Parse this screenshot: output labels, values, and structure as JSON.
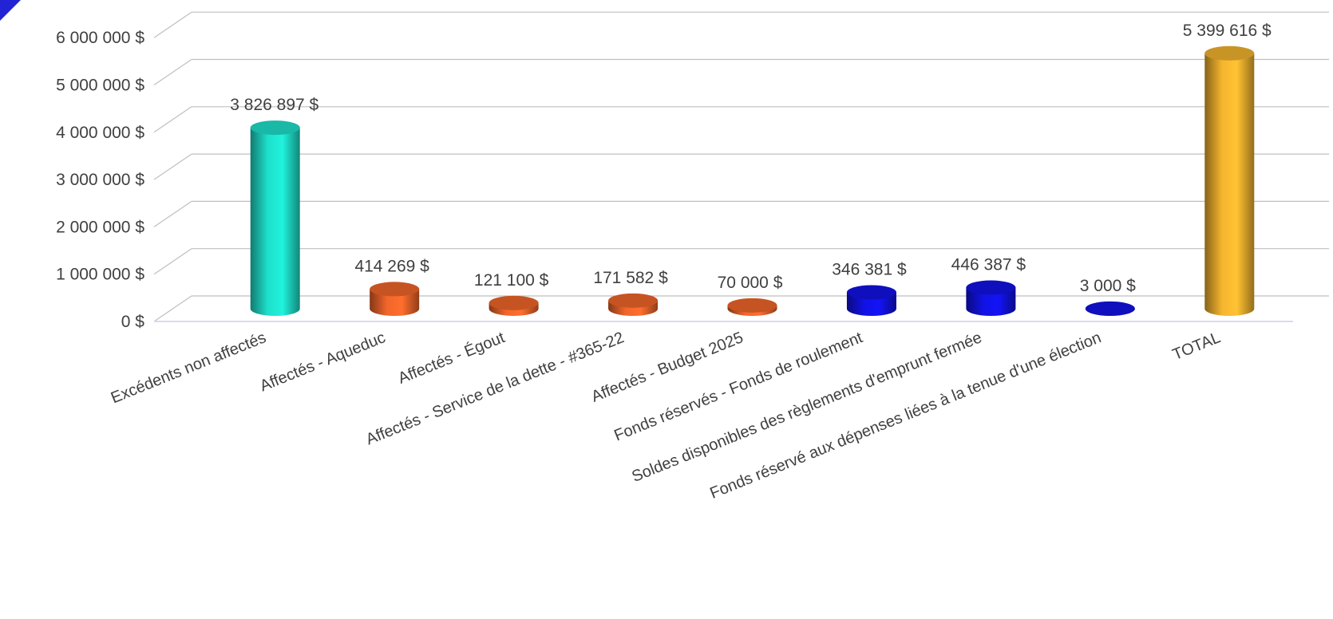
{
  "chart_data": {
    "type": "bar",
    "style": "3d-cylinder",
    "categories": [
      "Excédents non affectés",
      "Affectés - Aqueduc",
      "Affectés - Égout",
      "Affectés - Service de la dette - #365-22",
      "Affectés - Budget 2025",
      "Fonds réservés - Fonds de roulement",
      "Soldes disponibles des règlements d'emprunt fermée",
      "Fonds réservé aux dépenses liées à la tenue d'une élection",
      "TOTAL"
    ],
    "values": [
      3826897,
      414269,
      121100,
      171582,
      70000,
      346381,
      446387,
      3000,
      5399616
    ],
    "data_labels": [
      "3 826 897  $",
      "414 269  $",
      "121 100  $",
      "171 582  $",
      "70 000  $",
      "346 381  $",
      "446 387  $",
      "3 000  $",
      "5 399 616  $"
    ],
    "colors": [
      "#1ee0cc",
      "#f2662a",
      "#f2662a",
      "#f2662a",
      "#f2662a",
      "#1212e6",
      "#1212e6",
      "#1212e6",
      "#f5b52e"
    ],
    "y_ticks": [
      0,
      1000000,
      2000000,
      3000000,
      4000000,
      5000000,
      6000000
    ],
    "y_tick_labels": [
      "0 $",
      "1 000 000 $",
      "2 000 000 $",
      "3 000 000 $",
      "4 000 000 $",
      "5 000 000 $",
      "6 000 000 $"
    ],
    "ylim": [
      0,
      6500000
    ],
    "grid": true,
    "legend": "none",
    "title": "",
    "xlabel": "",
    "ylabel": ""
  }
}
